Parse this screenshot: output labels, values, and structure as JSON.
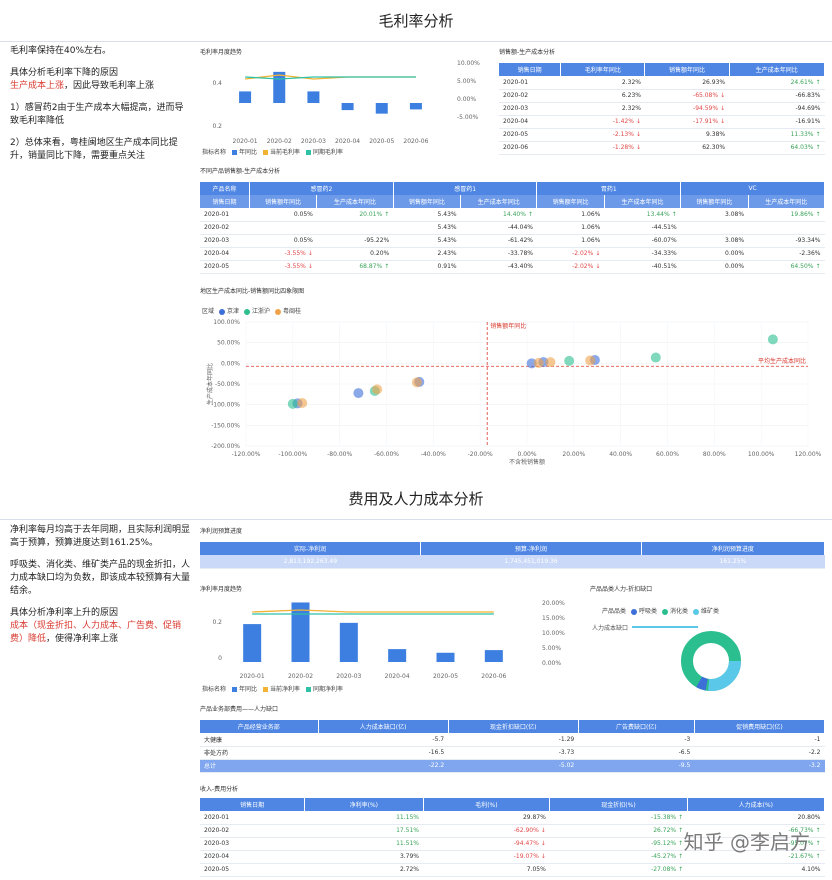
{
  "sec1": {
    "title": "毛利率分析"
  },
  "notes1": {
    "p1": "毛利率保持在40%左右。",
    "p2a": "具体分析毛利率下降的原因",
    "p2b": "生产成本上涨",
    "p2c": "，因此导致毛利率上涨",
    "p3": "1）感冒药2由于生产成本大幅提高，进而导致毛利率降低",
    "p4": "2）总体来看，粤桂闽地区生产成本同比提升，销量同比下降，需要重点关注"
  },
  "gm_chart": {
    "title": "毛利率月度趋势",
    "legend_prefix": "指标名称",
    "legend": [
      "年同比",
      "当前毛利率",
      "同期毛利率"
    ],
    "categories": [
      "2020-01",
      "2020-02",
      "2020-03",
      "2020-04",
      "2020-05",
      "2020-06"
    ],
    "yticks_left": [
      "0.4",
      "0.2"
    ],
    "yticks_right": [
      "10.00%",
      "5.00%",
      "0.00%",
      "-5.00%"
    ],
    "colors": {
      "bar": "#3d7fe0",
      "cur": "#f2b233",
      "prev": "#2ec1a6"
    }
  },
  "chart_data": [
    {
      "type": "bar",
      "title": "毛利率月度趋势",
      "categories": [
        "2020-01",
        "2020-02",
        "2020-03",
        "2020-04",
        "2020-05",
        "2020-06"
      ],
      "series": [
        {
          "name": "年同比",
          "values": [
            2.32,
            6.23,
            2.32,
            -1.42,
            -2.13,
            -1.28
          ]
        },
        {
          "name": "当前毛利率",
          "values": [
            0.43,
            0.45,
            0.43,
            0.44,
            0.44,
            0.44
          ]
        },
        {
          "name": "同期毛利率",
          "values": [
            0.44,
            0.43,
            0.44,
            0.44,
            0.44,
            0.44
          ]
        }
      ]
    },
    {
      "type": "scatter",
      "title": "地区生产成本同比-销售额同比四象限图",
      "xlabel": "不含税销售额",
      "ylabel": "生产成本年同比",
      "xlim": [
        -120,
        120
      ],
      "ylim": [
        -200,
        100
      ],
      "xticks": [
        "-120.00%",
        "-100.00%",
        "-80.00%",
        "-60.00%",
        "-40.00%",
        "-20.00%",
        "0.00%",
        "20.00%",
        "40.00%",
        "60.00%",
        "80.00%",
        "100.00%",
        "120.00%"
      ],
      "yticks": [
        "100.00%",
        "50.00%",
        "0.00%",
        "-50.00%",
        "-100.00%",
        "-150.00%",
        "-200.00%"
      ],
      "vline_label": "销售额年同比",
      "hline_label": "平均生产成本同比",
      "hline_value": -7,
      "vline_value": -17,
      "legend_prefix": "区域",
      "series": [
        {
          "name": "京津",
          "color": "#3d6fd8",
          "points": [
            [
              -98,
              -97
            ],
            [
              -72,
              -72
            ],
            [
              -46,
              -45
            ],
            [
              2,
              0
            ],
            [
              7,
              3
            ],
            [
              29,
              8
            ]
          ]
        },
        {
          "name": "江浙沪",
          "color": "#2bbf8f",
          "points": [
            [
              -100,
              -98
            ],
            [
              -65,
              -67
            ],
            [
              18,
              6
            ],
            [
              55,
              14
            ],
            [
              105,
              58
            ]
          ]
        },
        {
          "name": "粤闽桂",
          "color": "#f0a24a",
          "points": [
            [
              -96,
              -96
            ],
            [
              -64,
              -63
            ],
            [
              -47,
              -46
            ],
            [
              5,
              1
            ],
            [
              10,
              3
            ],
            [
              27,
              7
            ]
          ]
        }
      ]
    },
    {
      "type": "bar",
      "title": "净利率月度趋势",
      "categories": [
        "2020-01",
        "2020-02",
        "2020-03",
        "2020-04",
        "2020-05",
        "2020-06"
      ],
      "series": [
        {
          "name": "年同比",
          "values": [
            11.15,
            17.51,
            11.51,
            3.79,
            2.72,
            3.5
          ]
        },
        {
          "name": "当前净利率",
          "values": [
            0.24,
            0.25,
            0.24,
            0.24,
            0.24,
            0.24
          ]
        },
        {
          "name": "同期净利率",
          "values": [
            0.24,
            0.24,
            0.24,
            0.24,
            0.24,
            0.24
          ]
        }
      ]
    }
  ],
  "sales_cost": {
    "title": "销售额-生产成本分析",
    "headers": [
      "销售日期",
      "毛利率年同比",
      "销售额年同比",
      "生产成本年同比"
    ],
    "rows": [
      [
        "2020-01",
        "2.32%",
        "",
        "26.93%",
        "",
        "24.61%",
        "g"
      ],
      [
        "2020-02",
        "6.23%",
        "",
        "-65.08%",
        "rd",
        "-66.83%",
        ""
      ],
      [
        "2020-03",
        "2.32%",
        "",
        "-94.59%",
        "rd",
        "-94.69%",
        ""
      ],
      [
        "2020-04",
        "-1.42%",
        "rd",
        "-17.91%",
        "rd",
        "-16.91%",
        ""
      ],
      [
        "2020-05",
        "-2.13%",
        "rd",
        "9.38%",
        "",
        "11.33%",
        "g"
      ],
      [
        "2020-06",
        "-1.28%",
        "rd",
        "62.30%",
        "",
        "64.03%",
        "g"
      ]
    ]
  },
  "prod_table": {
    "title": "不同产品销售额-生产成本分析",
    "groups": [
      "产品名称",
      "感冒药2",
      "感冒药1",
      "胃药1",
      "VC"
    ],
    "sub": [
      "销售日期",
      "销售额年同比",
      "生产成本年同比",
      "销售额年同比",
      "生产成本年同比",
      "销售额年同比",
      "生产成本年同比",
      "销售额年同比",
      "生产成本年同比"
    ],
    "rows": [
      [
        "2020-01",
        "0.05%",
        "20.01%",
        "5.43%",
        "14.40%",
        "1.06%",
        "13.44%",
        "3.08%",
        "19.86%"
      ],
      [
        "2020-02",
        "",
        "",
        "5.43%",
        "-44.04%",
        "1.06%",
        "-44.51%",
        "",
        ""
      ],
      [
        "2020-03",
        "0.05%",
        "-95.22%",
        "5.43%",
        "-61.42%",
        "1.06%",
        "-60.07%",
        "3.08%",
        "-93.34%"
      ],
      [
        "2020-04",
        "-3.55%",
        "0.20%",
        "2.43%",
        "-33.78%",
        "-2.02%",
        "-34.33%",
        "0.00%",
        "-2.36%"
      ],
      [
        "2020-05",
        "-3.55%",
        "68.87%",
        "0.91%",
        "-43.40%",
        "-2.02%",
        "-40.51%",
        "0.00%",
        "64.50%"
      ]
    ]
  },
  "scatter": {
    "title": "地区生产成本同比-销售额同比四象限图",
    "legend_prefix": "区域",
    "ylabel": "生产成本年同比",
    "xlabel": "不含税销售额"
  },
  "sec2": {
    "title": "费用及人力成本分析"
  },
  "notes2": {
    "p1": "净利率每月均高于去年同期，且实际利润明显高于预算，预算进度达到161.25%。",
    "p2": "呼吸类、消化类、维矿类产品的现金折扣，人力成本缺口均为负数，即该成本较预算有大量结余。",
    "p3a": "具体分析净利率上升的原因",
    "p3b": "成本（现金折扣、人力成本、广告费、促销费）降低",
    "p3c": "，使得净利率上涨"
  },
  "budget": {
    "title": "净利润预算进度",
    "headers": [
      "实际-净利润",
      "预算-净利润",
      "净利润预算进度"
    ],
    "values": [
      "2,813,192,263.49",
      "1,745,451,019.36",
      "161.25%"
    ]
  },
  "np_chart": {
    "title": "净利率月度趋势",
    "legend_prefix": "指标名称",
    "legend": [
      "年同比",
      "当前净利率",
      "同期净利率"
    ],
    "yticks_left": [
      "0.2",
      "0"
    ],
    "yticks_right": [
      "20.00%",
      "15.00%",
      "10.00%",
      "5.00%",
      "0.00%"
    ]
  },
  "donut": {
    "title": "产品品类人力-折扣缺口",
    "legend_prefix": "产品品类",
    "legend": [
      "呼吸类",
      "消化类",
      "维矿类"
    ],
    "row_label": "人力成本缺口",
    "colors": [
      "#3d6fd8",
      "#2bbf8f",
      "#5ac8e8"
    ]
  },
  "biz_table": {
    "title": "产品业务部费用——人力缺口",
    "headers": [
      "产品经营业务部",
      "人力成本缺口(亿)",
      "现金折扣缺口(亿)",
      "广告费缺口(亿)",
      "促销费用缺口(亿)"
    ],
    "rows": [
      [
        "大健康",
        "-5.7",
        "-1.29",
        "-3",
        "-1"
      ],
      [
        "非处方药",
        "-16.5",
        "-3.73",
        "-6.5",
        "-2.2"
      ],
      [
        "总计",
        "-22.2",
        "-5.02",
        "-9.5",
        "-3.2"
      ]
    ]
  },
  "income_table": {
    "title": "收入-费用分析",
    "headers": [
      "销售日期",
      "净利率(%)",
      "毛利(%)",
      "现金折扣(%)",
      "人力成本(%)"
    ],
    "rows": [
      [
        "2020-01",
        "11.15%",
        "g",
        "29.87%",
        "",
        "-15.38%",
        "g",
        "20.80%",
        ""
      ],
      [
        "2020-02",
        "17.51%",
        "g",
        "-62.90%",
        "rd",
        "26.72%",
        "g",
        "-66.73%",
        "g"
      ],
      [
        "2020-03",
        "11.51%",
        "g",
        "-94.47%",
        "rd",
        "-95.12%",
        "g",
        "-95.07%",
        "g"
      ],
      [
        "2020-04",
        "3.79%",
        "",
        "-19.07%",
        "rd",
        "-45.27%",
        "g",
        "-21.67%",
        "g"
      ],
      [
        "2020-05",
        "2.72%",
        "",
        "7.05%",
        "",
        "-27.08%",
        "g",
        "4.10%",
        ""
      ]
    ]
  },
  "watermark": "知乎 @李启方"
}
